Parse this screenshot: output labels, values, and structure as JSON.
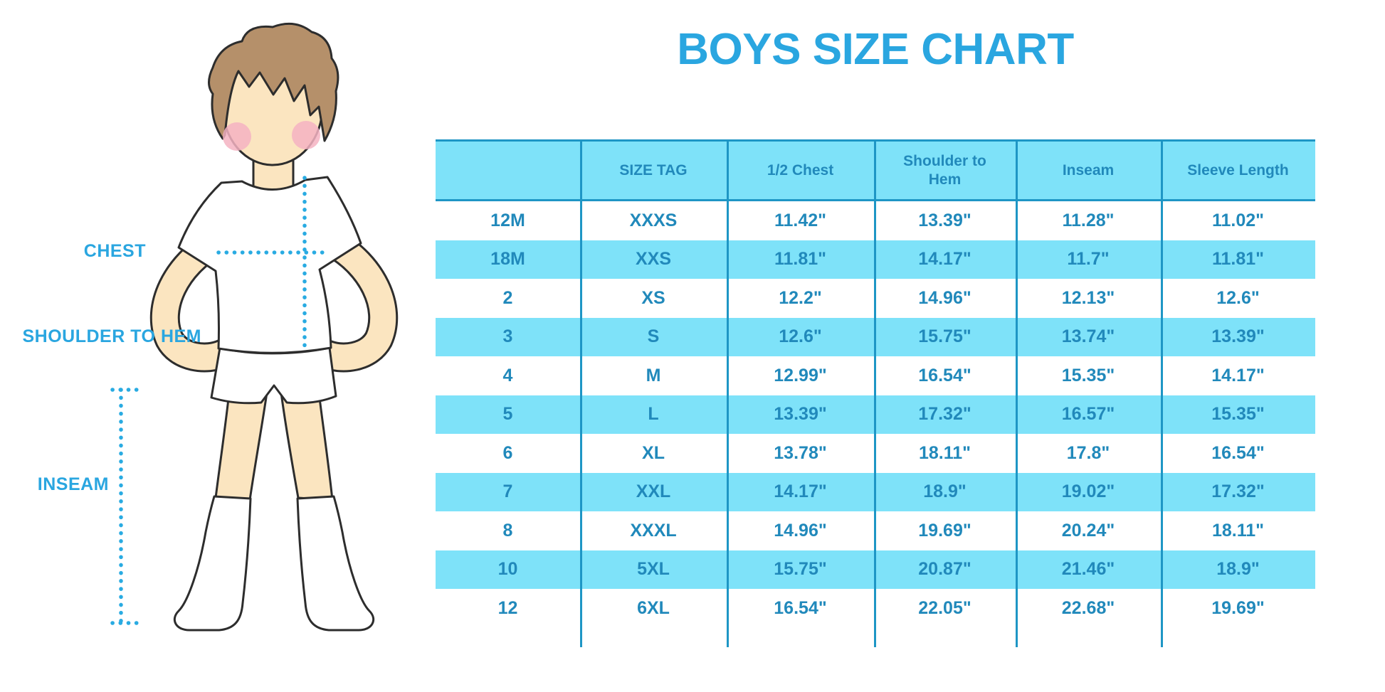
{
  "title": "BOYS SIZE CHART",
  "figure": {
    "labels": {
      "chest": "CHEST",
      "shoulder_to_hem": "SHOULDER TO HEM",
      "inseam": "INSEAM"
    }
  },
  "colors": {
    "accent": "#2aa6e0",
    "stripe": "#7ee2f9",
    "text": "#2189bb",
    "line": "#1e96c5",
    "dotted": "#29abe2",
    "skin": "#fbe5c0",
    "hair": "#b5906a",
    "blush": "#f4b3c2",
    "outline": "#2d2d2d"
  },
  "chart_data": {
    "type": "table",
    "title": "BOYS SIZE CHART",
    "columns": [
      "",
      "SIZE TAG",
      "1/2 Chest",
      "Shoulder to Hem",
      "Inseam",
      "Sleeve Length"
    ],
    "rows": [
      [
        "12M",
        "XXXS",
        "11.42\"",
        "13.39\"",
        "11.28\"",
        "11.02\""
      ],
      [
        "18M",
        "XXS",
        "11.81\"",
        "14.17\"",
        "11.7\"",
        "11.81\""
      ],
      [
        "2",
        "XS",
        "12.2\"",
        "14.96\"",
        "12.13\"",
        "12.6\""
      ],
      [
        "3",
        "S",
        "12.6\"",
        "15.75\"",
        "13.74\"",
        "13.39\""
      ],
      [
        "4",
        "M",
        "12.99\"",
        "16.54\"",
        "15.35\"",
        "14.17\""
      ],
      [
        "5",
        "L",
        "13.39\"",
        "17.32\"",
        "16.57\"",
        "15.35\""
      ],
      [
        "6",
        "XL",
        "13.78\"",
        "18.11\"",
        "17.8\"",
        "16.54\""
      ],
      [
        "7",
        "XXL",
        "14.17\"",
        "18.9\"",
        "19.02\"",
        "17.32\""
      ],
      [
        "8",
        "XXXL",
        "14.96\"",
        "19.69\"",
        "20.24\"",
        "18.11\""
      ],
      [
        "10",
        "5XL",
        "15.75\"",
        "20.87\"",
        "21.46\"",
        "18.9\""
      ],
      [
        "12",
        "6XL",
        "16.54\"",
        "22.05\"",
        "22.68\"",
        "19.69\""
      ]
    ]
  }
}
